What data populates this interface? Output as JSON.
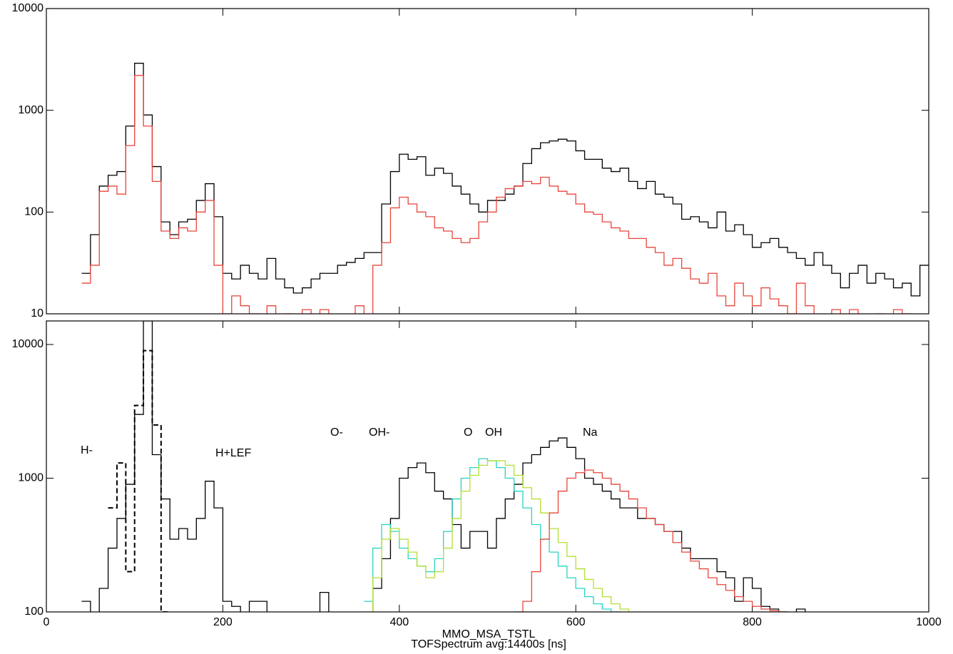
{
  "chart_data": [
    {
      "type": "histogram",
      "yscale": "log",
      "xlim": [
        0,
        1000
      ],
      "xticks": [
        0,
        200,
        400,
        600,
        800,
        1000
      ],
      "xtick_labels": false,
      "ylim": [
        10,
        10000
      ],
      "yticks": [
        10,
        100,
        1000,
        10000
      ],
      "series": [
        {
          "color": "#000000",
          "dash": false,
          "bins": [
            40,
            50,
            60,
            70,
            80,
            90,
            100,
            110,
            120,
            130,
            140,
            150,
            160,
            170,
            180,
            190,
            200,
            210,
            220,
            230,
            240,
            250,
            260,
            270,
            280,
            290,
            300,
            310,
            320,
            330,
            340,
            350,
            360,
            370,
            380,
            390,
            400,
            410,
            420,
            430,
            440,
            450,
            460,
            470,
            480,
            490,
            500,
            510,
            520,
            530,
            540,
            550,
            560,
            570,
            580,
            590,
            600,
            610,
            620,
            630,
            640,
            650,
            660,
            670,
            680,
            690,
            700,
            710,
            720,
            730,
            740,
            750,
            760,
            770,
            780,
            790,
            800,
            810,
            820,
            830,
            840,
            850,
            860,
            870,
            880,
            890,
            900,
            910,
            920,
            930,
            940,
            950,
            960,
            970,
            980,
            990,
            1000
          ],
          "values": [
            25,
            60,
            180,
            230,
            250,
            700,
            2900,
            900,
            280,
            80,
            60,
            80,
            85,
            130,
            190,
            90,
            25,
            22,
            30,
            25,
            22,
            35,
            22,
            18,
            16,
            18,
            22,
            25,
            25,
            30,
            32,
            35,
            40,
            40,
            120,
            250,
            370,
            330,
            350,
            230,
            270,
            240,
            180,
            150,
            120,
            100,
            130,
            130,
            150,
            180,
            300,
            420,
            480,
            500,
            520,
            500,
            400,
            330,
            330,
            270,
            250,
            270,
            200,
            170,
            200,
            150,
            140,
            120,
            85,
            90,
            80,
            70,
            100,
            65,
            75,
            60,
            45,
            50,
            55,
            45,
            40,
            35,
            30,
            40,
            30,
            25,
            18,
            25,
            30,
            20,
            25,
            22,
            18,
            20,
            15,
            30
          ]
        },
        {
          "color": "#e8453c",
          "dash": false,
          "bins": [
            40,
            50,
            60,
            70,
            80,
            90,
            100,
            110,
            120,
            130,
            140,
            150,
            160,
            170,
            180,
            190,
            200,
            210,
            220,
            230,
            240,
            250,
            260,
            270,
            280,
            290,
            300,
            310,
            320,
            330,
            340,
            350,
            360,
            370,
            380,
            390,
            400,
            410,
            420,
            430,
            440,
            450,
            460,
            470,
            480,
            490,
            500,
            510,
            520,
            530,
            540,
            550,
            560,
            570,
            580,
            590,
            600,
            610,
            620,
            630,
            640,
            650,
            660,
            670,
            680,
            690,
            700,
            710,
            720,
            730,
            740,
            750,
            760,
            770,
            780,
            790,
            800,
            810,
            820,
            830,
            840,
            850,
            860,
            870,
            880,
            890,
            900,
            910,
            920,
            930,
            940,
            950,
            960,
            970,
            980,
            990,
            1000
          ],
          "values": [
            20,
            30,
            160,
            180,
            150,
            450,
            2200,
            700,
            200,
            65,
            55,
            70,
            65,
            100,
            130,
            30,
            10,
            15,
            12,
            10,
            9,
            12,
            9,
            10,
            8,
            11,
            8,
            11,
            8,
            9,
            8,
            12,
            9,
            30,
            50,
            110,
            140,
            120,
            100,
            90,
            70,
            65,
            55,
            50,
            55,
            80,
            100,
            140,
            170,
            180,
            200,
            190,
            220,
            180,
            160,
            150,
            120,
            100,
            95,
            80,
            70,
            65,
            55,
            55,
            45,
            40,
            30,
            35,
            28,
            22,
            20,
            25,
            15,
            12,
            20,
            15,
            12,
            18,
            14,
            12,
            10,
            20,
            12,
            9,
            8,
            11,
            9,
            11,
            9,
            8,
            10,
            9,
            11,
            10,
            9,
            9
          ]
        }
      ]
    },
    {
      "type": "histogram",
      "yscale": "log",
      "xlim": [
        0,
        1000
      ],
      "xticks": [
        0,
        200,
        400,
        600,
        800,
        1000
      ],
      "xtick_labels": true,
      "ylim": [
        100,
        15000
      ],
      "yticks": [
        100,
        1000,
        10000
      ],
      "xlabel": [
        "MMO_MSA_TSTL",
        "TOFSpectrum avg:14400s [ns]"
      ],
      "annotations": [
        {
          "text": "H-",
          "color": "#000000"
        },
        {
          "text": "H+LEF",
          "color": "#000000"
        },
        {
          "text": "O-",
          "color": "#2ad4c0"
        },
        {
          "text": "OH-",
          "color": "#b2e034"
        },
        {
          "text": "O",
          "color": "#2ad4c0"
        },
        {
          "text": "OH",
          "color": "#b2e034"
        },
        {
          "text": "Na",
          "color": "#c8201e"
        }
      ],
      "series": [
        {
          "color": "#000000",
          "dash": false,
          "bins": [
            40,
            50,
            60,
            70,
            80,
            90,
            100,
            110,
            120,
            130,
            140,
            150,
            160,
            170,
            180,
            190,
            200,
            210,
            220,
            230,
            240,
            250,
            260,
            270,
            280,
            290,
            300,
            310,
            320,
            330,
            340,
            350,
            360,
            370,
            380,
            390,
            400,
            410,
            420,
            430,
            440,
            450,
            460,
            470,
            480,
            490,
            500,
            510,
            520,
            530,
            540,
            550,
            560,
            570,
            580,
            590,
            600,
            610,
            620,
            630,
            640,
            650,
            660,
            670,
            680,
            690,
            700,
            710,
            720,
            730,
            740,
            750,
            760,
            770,
            780,
            790,
            800,
            810,
            820,
            830,
            840,
            850,
            860,
            870
          ],
          "values": [
            120,
            90,
            150,
            300,
            500,
            900,
            3000,
            15000,
            1500,
            700,
            350,
            420,
            350,
            500,
            950,
            600,
            120,
            110,
            90,
            120,
            120,
            90,
            80,
            80,
            80,
            80,
            80,
            140,
            90,
            80,
            90,
            90,
            90,
            150,
            250,
            500,
            1000,
            1200,
            1300,
            1100,
            800,
            700,
            450,
            300,
            400,
            400,
            300,
            500,
            700,
            900,
            1300,
            1500,
            1700,
            1900,
            2000,
            1700,
            1400,
            1000,
            900,
            800,
            700,
            600,
            600,
            500,
            500,
            450,
            400,
            400,
            300,
            250,
            250,
            250,
            200,
            180,
            120,
            180,
            150,
            110,
            105,
            100,
            90,
            105,
            95
          ]
        },
        {
          "color": "#000000",
          "dash": true,
          "bins": [
            70,
            80,
            90,
            100,
            110,
            120,
            130,
            140
          ],
          "values": [
            600,
            1300,
            200,
            3500,
            9000,
            2500,
            100
          ]
        },
        {
          "color": "#2ad4c0",
          "dash": false,
          "bins": [
            360,
            370,
            380,
            390,
            400,
            410,
            420,
            430,
            440,
            450,
            460,
            470,
            480,
            490,
            500,
            510,
            520,
            530,
            540,
            550,
            560,
            570,
            580,
            590,
            600,
            610,
            620,
            630,
            640,
            650,
            660
          ],
          "values": [
            120,
            300,
            450,
            400,
            300,
            250,
            220,
            200,
            250,
            400,
            700,
            1000,
            1200,
            1400,
            1350,
            1200,
            1000,
            800,
            600,
            450,
            350,
            280,
            220,
            180,
            150,
            130,
            115,
            105,
            100,
            95
          ]
        },
        {
          "color": "#b2e034",
          "dash": false,
          "bins": [
            360,
            370,
            380,
            390,
            400,
            410,
            420,
            430,
            440,
            450,
            460,
            470,
            480,
            490,
            500,
            510,
            520,
            530,
            540,
            550,
            560,
            570,
            580,
            590,
            600,
            610,
            620,
            630,
            640,
            650,
            660,
            670,
            680
          ],
          "values": [
            100,
            180,
            350,
            420,
            350,
            280,
            220,
            180,
            200,
            300,
            500,
            800,
            1050,
            1250,
            1350,
            1350,
            1250,
            1050,
            850,
            700,
            550,
            420,
            330,
            260,
            210,
            175,
            150,
            130,
            115,
            105,
            98,
            90
          ]
        },
        {
          "color": "#e8453c",
          "dash": false,
          "bins": [
            530,
            540,
            550,
            560,
            570,
            580,
            590,
            600,
            610,
            620,
            630,
            640,
            650,
            660,
            670,
            680,
            690,
            700,
            710,
            720,
            730,
            740,
            750,
            760,
            770,
            780,
            790,
            800,
            810,
            820,
            830,
            840,
            850,
            860
          ],
          "values": [
            100,
            120,
            200,
            350,
            550,
            800,
            1000,
            1100,
            1150,
            1100,
            1000,
            900,
            800,
            700,
            600,
            500,
            450,
            400,
            330,
            280,
            240,
            210,
            180,
            160,
            145,
            130,
            120,
            110,
            105,
            102,
            100,
            98,
            95
          ]
        }
      ]
    }
  ]
}
